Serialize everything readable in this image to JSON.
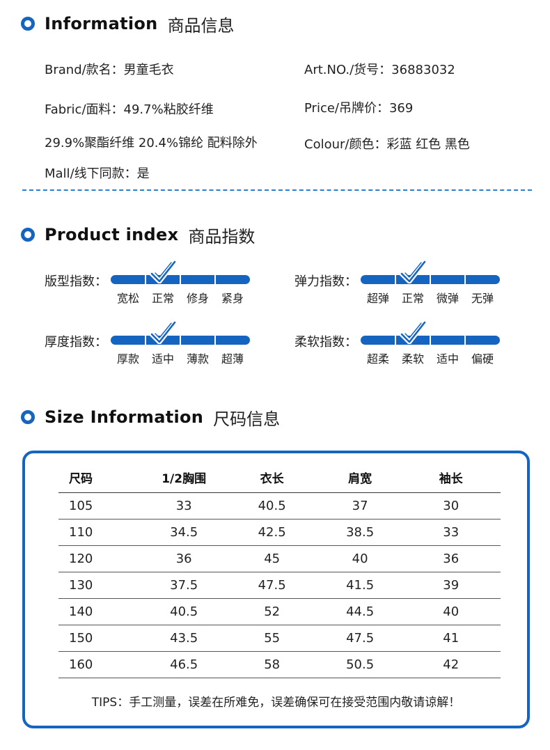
{
  "sections": {
    "info": {
      "en": "Information",
      "cn": "商品信息"
    },
    "index": {
      "en": "Product index",
      "cn": "商品指数"
    },
    "size": {
      "en": "Size Information",
      "cn": "尺码信息"
    }
  },
  "info": {
    "brand": "Brand/款名：男童毛衣",
    "artno": "Art.NO./货号：36883032",
    "fabric1": "Fabric/面料：49.7%粘胶纤维",
    "price": "Price/吊牌价：369",
    "fabric2": "29.9%聚酯纤维 20.4%锦纶 配料除外",
    "colour": "Colour/颜色：彩蓝 红色 黑色",
    "mall": "Mall/线下同款：是"
  },
  "indices": [
    {
      "label": "版型指数：",
      "options": [
        "宽松",
        "正常",
        "修身",
        "紧身"
      ],
      "selected": 1
    },
    {
      "label": "弹力指数：",
      "options": [
        "超弹",
        "正常",
        "微弹",
        "无弹"
      ],
      "selected": 1
    },
    {
      "label": "厚度指数：",
      "options": [
        "厚款",
        "适中",
        "薄款",
        "超薄"
      ],
      "selected": 1
    },
    {
      "label": "柔软指数：",
      "options": [
        "超柔",
        "柔软",
        "适中",
        "偏硬"
      ],
      "selected": 1
    }
  ],
  "size_table": {
    "headers": [
      "尺码",
      "1/2胸围",
      "衣长",
      "肩宽",
      "袖长"
    ],
    "rows": [
      [
        "105",
        "33",
        "40.5",
        "37",
        "30"
      ],
      [
        "110",
        "34.5",
        "42.5",
        "38.5",
        "33"
      ],
      [
        "120",
        "36",
        "45",
        "40",
        "36"
      ],
      [
        "130",
        "37.5",
        "47.5",
        "41.5",
        "39"
      ],
      [
        "140",
        "40.5",
        "52",
        "44.5",
        "40"
      ],
      [
        "150",
        "43.5",
        "55",
        "47.5",
        "41"
      ],
      [
        "160",
        "46.5",
        "58",
        "50.5",
        "42"
      ]
    ]
  },
  "tips": "TIPS：手工测量，误差在所难免，误差确保可在接受范围内敬请谅解！",
  "colors": {
    "accent": "#1565c0",
    "dash": "#2c7ecb"
  },
  "icons": {
    "section_bullet": "ring-bullet-icon",
    "selected_mark": "checkmark-icon"
  }
}
